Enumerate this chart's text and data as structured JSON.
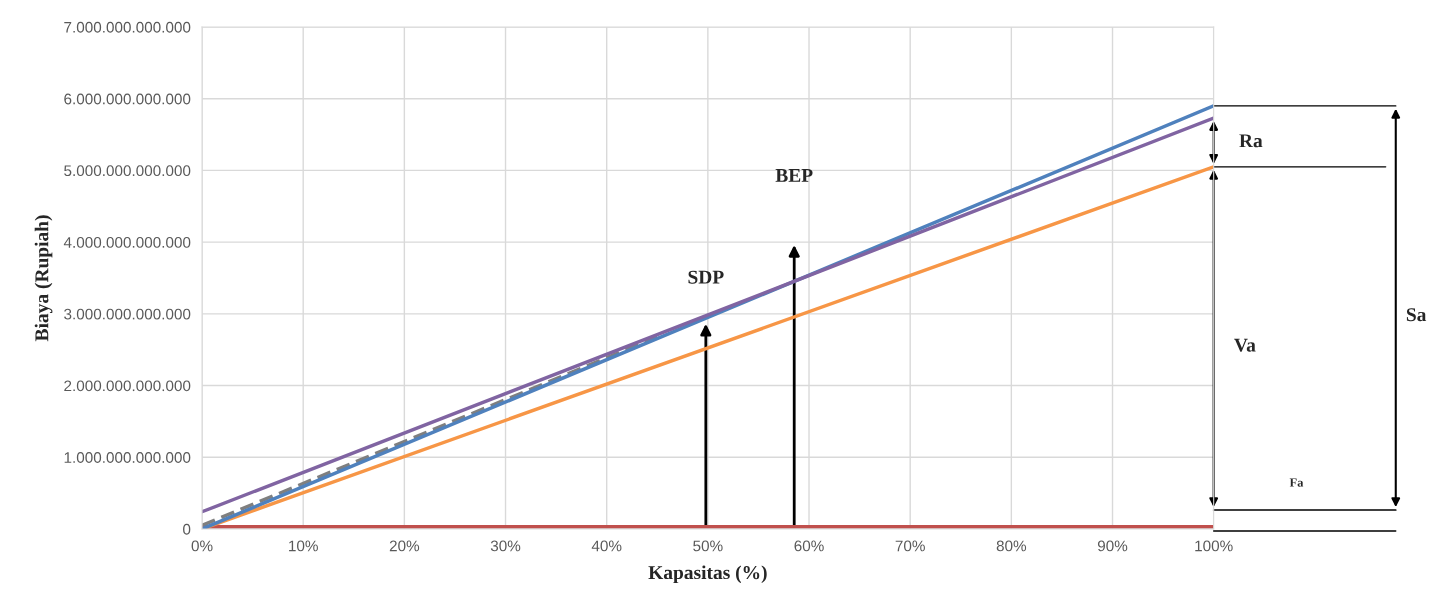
{
  "chart_data": {
    "type": "line",
    "xlabel": "Kapasitas (%)",
    "ylabel": "Biaya (Rupiah)",
    "x": [
      0,
      100
    ],
    "series": [
      {
        "color": "#c0504d",
        "values": [
          30000000000,
          30000000000
        ]
      },
      {
        "color": "#f79646",
        "values": [
          0,
          5050000000000
        ]
      },
      {
        "color": "#7f7f7f",
        "line_style": "dashed",
        "x": [
          0,
          45
        ],
        "values": [
          50000000000,
          2680000000000
        ]
      },
      {
        "color": "#4f81bd",
        "values": [
          0,
          5900000000000
        ]
      },
      {
        "color": "#8064a2",
        "values": [
          240000000000,
          5730000000000
        ]
      }
    ],
    "xlim": [
      0,
      100
    ],
    "xticks": [
      {
        "value": 0,
        "label": "0%"
      },
      {
        "value": 10,
        "label": "10%"
      },
      {
        "value": 20,
        "label": "20%"
      },
      {
        "value": 30,
        "label": "30%"
      },
      {
        "value": 40,
        "label": "40%"
      },
      {
        "value": 50,
        "label": "50%"
      },
      {
        "value": 60,
        "label": "60%"
      },
      {
        "value": 70,
        "label": "70%"
      },
      {
        "value": 80,
        "label": "80%"
      },
      {
        "value": 90,
        "label": "90%"
      },
      {
        "value": 100,
        "label": "100%"
      }
    ],
    "ylim": [
      0,
      7000000000000
    ],
    "yticks": [
      {
        "value": 0,
        "label": "0"
      },
      {
        "value": 1000000000000,
        "label": "1.000.000.000.000"
      },
      {
        "value": 2000000000000,
        "label": "2.000.000.000.000"
      },
      {
        "value": 3000000000000,
        "label": "3.000.000.000.000"
      },
      {
        "value": 4000000000000,
        "label": "4.000.000.000.000"
      },
      {
        "value": 5000000000000,
        "label": "5.000.000.000.000"
      },
      {
        "value": 6000000000000,
        "label": "6.000.000.000.000"
      },
      {
        "value": 7000000000000,
        "label": "7.000.000.000.000"
      }
    ],
    "grid": true,
    "annotations": [
      {
        "text": "SDP",
        "x": 49.8,
        "y": 2900000000000
      },
      "BEP",
      "Ra",
      "Va",
      "Sa",
      "Fa"
    ]
  }
}
